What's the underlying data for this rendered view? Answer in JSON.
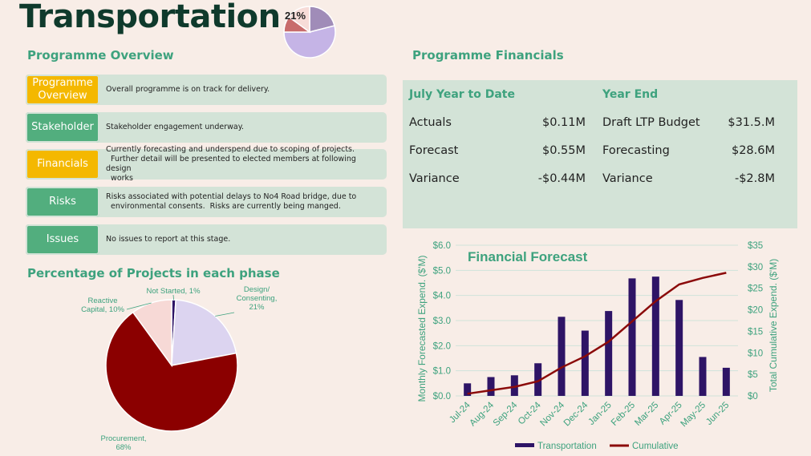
{
  "header": {
    "title": "Transportation",
    "mini_pie_label": "21%"
  },
  "overview": {
    "title": "Programme Overview",
    "rows": [
      {
        "tag": "Programme\nOverview",
        "status": "amber",
        "text": "Overall programme is on track for delivery."
      },
      {
        "tag": "Stakeholder",
        "status": "green",
        "text": "Stakeholder engagement underway."
      },
      {
        "tag": "Financials",
        "status": "amber",
        "text": "Currently forecasting and underspend due to scoping of projects.\n  Further detail will be presented to elected members at following design\n  works"
      },
      {
        "tag": "Risks",
        "status": "green",
        "text": "Risks associated with potential delays to No4 Road bridge, due to\n  environmental consents.  Risks are currently being manged."
      },
      {
        "tag": "Issues",
        "status": "green",
        "text": "No issues to report at this stage."
      }
    ]
  },
  "financials": {
    "title": "Programme Financials",
    "ytd": {
      "heading": "July Year to Date",
      "rows": [
        {
          "label": "Actuals",
          "value": "$0.11M"
        },
        {
          "label": "Forecast",
          "value": "$0.55M"
        },
        {
          "label": "Variance",
          "value": "-$0.44M"
        }
      ]
    },
    "year_end": {
      "heading": "Year End",
      "rows": [
        {
          "label": "Draft LTP Budget",
          "value": "$31.5.M"
        },
        {
          "label": "Forecasting",
          "value": "$28.6M"
        },
        {
          "label": "Variance",
          "value": "-$2.8M"
        }
      ]
    }
  },
  "colors": {
    "amber": "#f4b800",
    "green": "#52ae7e",
    "teal_text": "#3ea27e",
    "bar": "#2e1466",
    "line": "#8b0a0a"
  },
  "chart_data": [
    {
      "type": "pie",
      "title": "Percentage of Projects in each phase",
      "slices": [
        {
          "label": "Not Started, 1%",
          "value": 1,
          "color": "#2e1466"
        },
        {
          "label": "Design/\nConsenting,\n21%",
          "value": 21,
          "color": "#dcd4f0"
        },
        {
          "label": "Procurement,\n68%",
          "value": 68,
          "color": "#8b0000"
        },
        {
          "label": "Reactive\nCapital, 10%",
          "value": 10,
          "color": "#f7d9d6"
        }
      ]
    },
    {
      "type": "bar",
      "title": "Financial Forecast",
      "categories": [
        "Jul-24",
        "Aug-24",
        "Sep-24",
        "Oct-24",
        "Nov-24",
        "Dec-24",
        "Jan-25",
        "Feb-25",
        "Mar-25",
        "Apr-25",
        "May-25",
        "Jun-25"
      ],
      "series": [
        {
          "name": "Transportation",
          "type": "bar",
          "axis": "left",
          "values": [
            0.5,
            0.75,
            0.82,
            1.3,
            3.15,
            2.6,
            3.38,
            4.68,
            4.75,
            3.82,
            1.55,
            1.12
          ]
        },
        {
          "name": "Cumulative",
          "type": "line",
          "axis": "right",
          "values": [
            0.5,
            1.3,
            2.1,
            3.4,
            6.6,
            9.2,
            12.6,
            17.3,
            22.0,
            25.9,
            27.4,
            28.6
          ]
        }
      ],
      "ylabel": "Monthly Forecasted Expend. ($'M)",
      "y2label": "Total Cumulative Expend. ($'M)",
      "ylim": [
        0,
        6
      ],
      "y2lim": [
        0,
        35
      ],
      "yticks": [
        "$0.0",
        "$1.0",
        "$2.0",
        "$3.0",
        "$4.0",
        "$5.0",
        "$6.0"
      ],
      "y2ticks": [
        "$0",
        "$5",
        "$10",
        "$15",
        "$20",
        "$25",
        "$30",
        "$35"
      ],
      "legend": "bottom",
      "grid": true
    },
    {
      "type": "pie",
      "title": "",
      "slices": [
        {
          "label": "",
          "value": 21,
          "color": "#a08cb8"
        },
        {
          "label": "",
          "value": 54,
          "color": "#c5b4e6"
        },
        {
          "label": "",
          "value": 10,
          "color": "#c86c6c"
        },
        {
          "label": "",
          "value": 15,
          "color": "#f7dcd8"
        }
      ]
    }
  ]
}
